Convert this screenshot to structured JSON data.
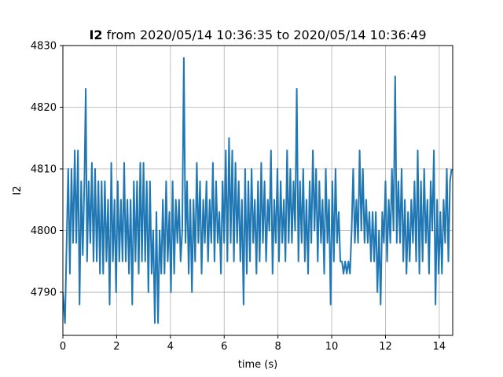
{
  "chart_data": {
    "type": "line",
    "title": "I2 from 2020/05/14 10:36:35 to 2020/05/14 10:36:49",
    "title_bold_part": "I2",
    "title_rest": " from 2020/05/14 10:36:35 to 2020/05/14 10:36:49",
    "xlabel": "time (s)",
    "ylabel": "I2",
    "xlim": [
      0,
      14.5
    ],
    "ylim": [
      4783,
      4830
    ],
    "xticks": [
      0,
      2,
      4,
      6,
      8,
      10,
      12,
      14
    ],
    "xtick_labels": [
      "0",
      "2",
      "4",
      "6",
      "8",
      "10",
      "12",
      "14"
    ],
    "yticks": [
      4790,
      4800,
      4810,
      4820,
      4830
    ],
    "ytick_labels": [
      "4790",
      "4800",
      "4810",
      "4820",
      "4830"
    ],
    "grid": true,
    "series": [
      {
        "color": "#1f77b4",
        "points": [
          [
            0.0,
            4790
          ],
          [
            0.08,
            4785
          ],
          [
            0.15,
            4800
          ],
          [
            0.2,
            4810
          ],
          [
            0.26,
            4793
          ],
          [
            0.32,
            4810
          ],
          [
            0.38,
            4798
          ],
          [
            0.44,
            4813
          ],
          [
            0.5,
            4798
          ],
          [
            0.56,
            4813
          ],
          [
            0.62,
            4788
          ],
          [
            0.68,
            4808
          ],
          [
            0.74,
            4796
          ],
          [
            0.8,
            4808
          ],
          [
            0.85,
            4823
          ],
          [
            0.9,
            4795
          ],
          [
            0.96,
            4808
          ],
          [
            1.02,
            4798
          ],
          [
            1.08,
            4811
          ],
          [
            1.14,
            4795
          ],
          [
            1.2,
            4810
          ],
          [
            1.26,
            4795
          ],
          [
            1.32,
            4808
          ],
          [
            1.38,
            4793
          ],
          [
            1.44,
            4808
          ],
          [
            1.5,
            4793
          ],
          [
            1.56,
            4808
          ],
          [
            1.62,
            4795
          ],
          [
            1.68,
            4805
          ],
          [
            1.74,
            4788
          ],
          [
            1.8,
            4811
          ],
          [
            1.86,
            4795
          ],
          [
            1.92,
            4805
          ],
          [
            1.98,
            4790
          ],
          [
            2.04,
            4808
          ],
          [
            2.1,
            4795
          ],
          [
            2.16,
            4805
          ],
          [
            2.22,
            4795
          ],
          [
            2.28,
            4811
          ],
          [
            2.34,
            4795
          ],
          [
            2.4,
            4805
          ],
          [
            2.46,
            4793
          ],
          [
            2.52,
            4805
          ],
          [
            2.58,
            4788
          ],
          [
            2.64,
            4808
          ],
          [
            2.7,
            4795
          ],
          [
            2.76,
            4808
          ],
          [
            2.82,
            4793
          ],
          [
            2.88,
            4811
          ],
          [
            2.94,
            4795
          ],
          [
            3.0,
            4811
          ],
          [
            3.06,
            4795
          ],
          [
            3.12,
            4808
          ],
          [
            3.18,
            4790
          ],
          [
            3.24,
            4808
          ],
          [
            3.3,
            4793
          ],
          [
            3.36,
            4800
          ],
          [
            3.42,
            4785
          ],
          [
            3.48,
            4803
          ],
          [
            3.54,
            4785
          ],
          [
            3.6,
            4800
          ],
          [
            3.66,
            4793
          ],
          [
            3.72,
            4805
          ],
          [
            3.78,
            4793
          ],
          [
            3.84,
            4808
          ],
          [
            3.9,
            4795
          ],
          [
            3.96,
            4803
          ],
          [
            4.02,
            4790
          ],
          [
            4.08,
            4808
          ],
          [
            4.14,
            4793
          ],
          [
            4.2,
            4805
          ],
          [
            4.26,
            4798
          ],
          [
            4.32,
            4805
          ],
          [
            4.38,
            4795
          ],
          [
            4.44,
            4800
          ],
          [
            4.5,
            4828
          ],
          [
            4.56,
            4798
          ],
          [
            4.62,
            4808
          ],
          [
            4.68,
            4793
          ],
          [
            4.74,
            4805
          ],
          [
            4.8,
            4790
          ],
          [
            4.86,
            4805
          ],
          [
            4.92,
            4795
          ],
          [
            4.98,
            4811
          ],
          [
            5.04,
            4798
          ],
          [
            5.1,
            4808
          ],
          [
            5.16,
            4793
          ],
          [
            5.22,
            4805
          ],
          [
            5.28,
            4798
          ],
          [
            5.34,
            4808
          ],
          [
            5.4,
            4795
          ],
          [
            5.46,
            4805
          ],
          [
            5.52,
            4798
          ],
          [
            5.58,
            4811
          ],
          [
            5.64,
            4795
          ],
          [
            5.7,
            4808
          ],
          [
            5.76,
            4798
          ],
          [
            5.82,
            4803
          ],
          [
            5.88,
            4793
          ],
          [
            5.94,
            4808
          ],
          [
            6.0,
            4798
          ],
          [
            6.06,
            4813
          ],
          [
            6.12,
            4795
          ],
          [
            6.18,
            4815
          ],
          [
            6.24,
            4798
          ],
          [
            6.3,
            4813
          ],
          [
            6.36,
            4795
          ],
          [
            6.42,
            4811
          ],
          [
            6.48,
            4798
          ],
          [
            6.54,
            4808
          ],
          [
            6.6,
            4795
          ],
          [
            6.66,
            4805
          ],
          [
            6.72,
            4788
          ],
          [
            6.78,
            4810
          ],
          [
            6.84,
            4793
          ],
          [
            6.9,
            4808
          ],
          [
            6.96,
            4795
          ],
          [
            7.02,
            4810
          ],
          [
            7.08,
            4798
          ],
          [
            7.14,
            4805
          ],
          [
            7.2,
            4793
          ],
          [
            7.26,
            4808
          ],
          [
            7.32,
            4795
          ],
          [
            7.38,
            4811
          ],
          [
            7.44,
            4798
          ],
          [
            7.5,
            4808
          ],
          [
            7.56,
            4795
          ],
          [
            7.62,
            4805
          ],
          [
            7.68,
            4800
          ],
          [
            7.74,
            4813
          ],
          [
            7.8,
            4793
          ],
          [
            7.86,
            4805
          ],
          [
            7.92,
            4798
          ],
          [
            7.98,
            4810
          ],
          [
            8.04,
            4795
          ],
          [
            8.1,
            4808
          ],
          [
            8.16,
            4798
          ],
          [
            8.22,
            4805
          ],
          [
            8.28,
            4795
          ],
          [
            8.34,
            4813
          ],
          [
            8.4,
            4798
          ],
          [
            8.46,
            4810
          ],
          [
            8.52,
            4798
          ],
          [
            8.58,
            4808
          ],
          [
            8.64,
            4800
          ],
          [
            8.7,
            4823
          ],
          [
            8.76,
            4795
          ],
          [
            8.82,
            4808
          ],
          [
            8.88,
            4798
          ],
          [
            8.94,
            4810
          ],
          [
            9.0,
            4795
          ],
          [
            9.06,
            4805
          ],
          [
            9.12,
            4793
          ],
          [
            9.18,
            4808
          ],
          [
            9.24,
            4798
          ],
          [
            9.3,
            4813
          ],
          [
            9.36,
            4800
          ],
          [
            9.42,
            4810
          ],
          [
            9.48,
            4795
          ],
          [
            9.54,
            4808
          ],
          [
            9.6,
            4798
          ],
          [
            9.66,
            4805
          ],
          [
            9.72,
            4793
          ],
          [
            9.78,
            4810
          ],
          [
            9.84,
            4798
          ],
          [
            9.9,
            4805
          ],
          [
            9.96,
            4788
          ],
          [
            10.02,
            4808
          ],
          [
            10.08,
            4795
          ],
          [
            10.14,
            4810
          ],
          [
            10.2,
            4798
          ],
          [
            10.26,
            4803
          ],
          [
            10.32,
            4795
          ],
          [
            10.38,
            4795
          ],
          [
            10.44,
            4793
          ],
          [
            10.5,
            4795
          ],
          [
            10.56,
            4793
          ],
          [
            10.62,
            4795
          ],
          [
            10.68,
            4793
          ],
          [
            10.74,
            4800
          ],
          [
            10.8,
            4810
          ],
          [
            10.86,
            4798
          ],
          [
            10.92,
            4805
          ],
          [
            10.98,
            4798
          ],
          [
            11.04,
            4813
          ],
          [
            11.1,
            4800
          ],
          [
            11.16,
            4810
          ],
          [
            11.22,
            4798
          ],
          [
            11.28,
            4805
          ],
          [
            11.34,
            4798
          ],
          [
            11.4,
            4803
          ],
          [
            11.46,
            4795
          ],
          [
            11.52,
            4803
          ],
          [
            11.58,
            4795
          ],
          [
            11.64,
            4803
          ],
          [
            11.7,
            4790
          ],
          [
            11.76,
            4800
          ],
          [
            11.82,
            4788
          ],
          [
            11.88,
            4803
          ],
          [
            11.94,
            4798
          ],
          [
            12.0,
            4808
          ],
          [
            12.06,
            4795
          ],
          [
            12.12,
            4805
          ],
          [
            12.18,
            4798
          ],
          [
            12.24,
            4810
          ],
          [
            12.3,
            4800
          ],
          [
            12.36,
            4825
          ],
          [
            12.42,
            4798
          ],
          [
            12.48,
            4808
          ],
          [
            12.54,
            4798
          ],
          [
            12.6,
            4810
          ],
          [
            12.66,
            4795
          ],
          [
            12.72,
            4805
          ],
          [
            12.78,
            4793
          ],
          [
            12.84,
            4803
          ],
          [
            12.9,
            4795
          ],
          [
            12.96,
            4805
          ],
          [
            13.02,
            4798
          ],
          [
            13.08,
            4808
          ],
          [
            13.14,
            4795
          ],
          [
            13.2,
            4813
          ],
          [
            13.26,
            4793
          ],
          [
            13.32,
            4808
          ],
          [
            13.38,
            4795
          ],
          [
            13.44,
            4810
          ],
          [
            13.5,
            4798
          ],
          [
            13.56,
            4805
          ],
          [
            13.62,
            4793
          ],
          [
            13.68,
            4808
          ],
          [
            13.74,
            4800
          ],
          [
            13.8,
            4813
          ],
          [
            13.86,
            4788
          ],
          [
            13.92,
            4805
          ],
          [
            13.98,
            4793
          ],
          [
            14.04,
            4803
          ],
          [
            14.1,
            4793
          ],
          [
            14.16,
            4805
          ],
          [
            14.22,
            4798
          ],
          [
            14.28,
            4810
          ],
          [
            14.34,
            4795
          ],
          [
            14.4,
            4808
          ],
          [
            14.46,
            4810
          ]
        ]
      }
    ]
  }
}
